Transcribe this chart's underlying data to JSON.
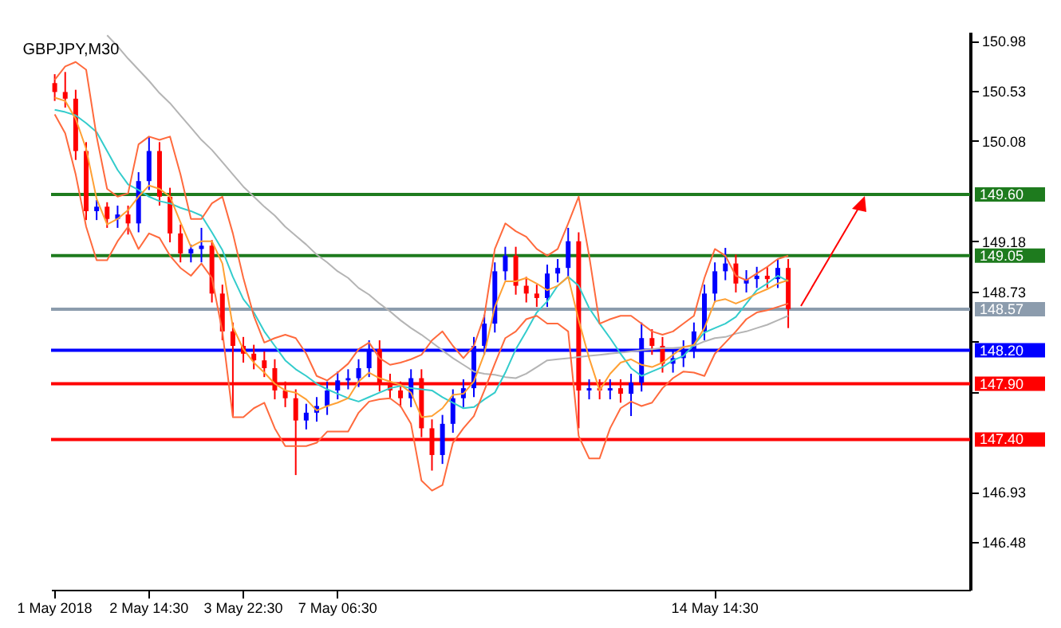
{
  "chart_data": {
    "type": "candlestick",
    "title": "GBPJPY,M30",
    "categories": [
      "1 May 2018",
      null,
      null,
      null,
      null,
      null,
      null,
      null,
      null,
      "2 May 14:30",
      null,
      null,
      null,
      null,
      null,
      null,
      null,
      null,
      "3 May 22:30",
      null,
      null,
      null,
      null,
      null,
      null,
      null,
      null,
      "7 May 06:30",
      null,
      null,
      null,
      null,
      null,
      null,
      null,
      null,
      null,
      null,
      null,
      null,
      null,
      null,
      null,
      null,
      null,
      null,
      null,
      null,
      null,
      null,
      null,
      null,
      null,
      null,
      null,
      null,
      null,
      null,
      null,
      null,
      null,
      null,
      null,
      "14 May 14:30",
      null,
      null,
      null,
      null,
      null,
      null,
      null,
      null,
      null,
      null,
      null,
      null,
      null,
      null,
      null,
      null,
      null,
      null,
      null,
      null,
      null,
      null,
      null,
      null
    ],
    "ohlc": [
      [
        150.6,
        150.68,
        150.44,
        150.52
      ],
      [
        150.52,
        150.7,
        150.38,
        150.46
      ],
      [
        150.46,
        150.54,
        149.91,
        149.99
      ],
      [
        149.99,
        150.07,
        149.37,
        149.45
      ],
      [
        149.45,
        149.55,
        149.37,
        149.49
      ],
      [
        149.49,
        149.53,
        149.3,
        149.38
      ],
      [
        149.38,
        149.5,
        149.3,
        149.42
      ],
      [
        149.42,
        149.5,
        149.24,
        149.34
      ],
      [
        149.34,
        149.8,
        149.26,
        149.72
      ],
      [
        149.72,
        150.12,
        149.64,
        149.99
      ],
      [
        149.99,
        150.07,
        149.5,
        149.58
      ],
      [
        149.58,
        149.66,
        149.17,
        149.25
      ],
      [
        149.25,
        149.33,
        148.99,
        149.07
      ],
      [
        149.07,
        149.15,
        148.99,
        149.11
      ],
      [
        149.11,
        149.3,
        148.99,
        149.14
      ],
      [
        149.14,
        149.19,
        148.63,
        148.71
      ],
      [
        148.71,
        148.79,
        148.29,
        148.37
      ],
      [
        148.37,
        148.45,
        147.61,
        148.24
      ],
      [
        148.24,
        148.32,
        148.09,
        148.17
      ],
      [
        148.17,
        148.25,
        148.03,
        148.11
      ],
      [
        148.11,
        148.19,
        147.96,
        148.04
      ],
      [
        148.04,
        148.12,
        147.76,
        147.84
      ],
      [
        147.84,
        147.92,
        147.69,
        147.77
      ],
      [
        147.77,
        147.85,
        147.08,
        147.57
      ],
      [
        147.57,
        147.72,
        147.49,
        147.64
      ],
      [
        147.64,
        147.78,
        147.56,
        147.7
      ],
      [
        147.7,
        147.92,
        147.62,
        147.84
      ],
      [
        147.84,
        148.01,
        147.76,
        147.93
      ],
      [
        147.93,
        148.03,
        147.85,
        147.95
      ],
      [
        147.95,
        148.12,
        147.87,
        148.04
      ],
      [
        148.04,
        148.29,
        147.96,
        148.21
      ],
      [
        148.21,
        148.29,
        147.83,
        147.91
      ],
      [
        147.91,
        147.99,
        147.76,
        147.84
      ],
      [
        147.84,
        147.92,
        147.69,
        147.77
      ],
      [
        147.77,
        148.03,
        147.69,
        147.95
      ],
      [
        147.95,
        148.03,
        147.42,
        147.5
      ],
      [
        147.5,
        147.58,
        147.12,
        147.26
      ],
      [
        147.26,
        147.62,
        147.18,
        147.54
      ],
      [
        147.54,
        147.85,
        147.46,
        147.77
      ],
      [
        147.77,
        147.94,
        147.69,
        147.86
      ],
      [
        147.86,
        148.32,
        147.78,
        148.24
      ],
      [
        148.24,
        148.52,
        148.16,
        148.44
      ],
      [
        148.44,
        148.99,
        148.36,
        148.91
      ],
      [
        148.91,
        149.13,
        148.83,
        149.05
      ],
      [
        149.05,
        149.13,
        148.7,
        148.78
      ],
      [
        148.78,
        148.86,
        148.63,
        148.71
      ],
      [
        148.71,
        148.79,
        148.59,
        148.67
      ],
      [
        148.67,
        148.97,
        148.59,
        148.89
      ],
      [
        148.89,
        149.02,
        148.81,
        148.94
      ],
      [
        148.94,
        149.3,
        148.86,
        149.18
      ],
      [
        149.18,
        149.26,
        147.5,
        147.84
      ],
      [
        147.84,
        147.94,
        147.76,
        147.86
      ],
      [
        147.86,
        147.94,
        147.76,
        147.84
      ],
      [
        147.84,
        147.94,
        147.76,
        147.86
      ],
      [
        147.86,
        147.94,
        147.73,
        147.81
      ],
      [
        147.81,
        147.99,
        147.61,
        147.91
      ],
      [
        147.91,
        148.45,
        147.83,
        148.31
      ],
      [
        148.31,
        148.39,
        148.16,
        148.24
      ],
      [
        148.24,
        148.32,
        148.0,
        148.08
      ],
      [
        148.08,
        148.21,
        148.0,
        148.13
      ],
      [
        148.13,
        148.29,
        148.05,
        148.21
      ],
      [
        148.21,
        148.45,
        148.13,
        148.37
      ],
      [
        148.37,
        148.79,
        148.29,
        148.71
      ],
      [
        148.71,
        148.99,
        148.63,
        148.91
      ],
      [
        148.91,
        149.12,
        148.83,
        148.98
      ],
      [
        148.98,
        149.06,
        148.72,
        148.8
      ],
      [
        148.8,
        148.92,
        148.72,
        148.84
      ],
      [
        148.84,
        148.95,
        148.76,
        148.87
      ],
      [
        148.87,
        148.95,
        148.76,
        148.84
      ],
      [
        148.84,
        149.02,
        148.76,
        148.94
      ],
      [
        148.94,
        149.02,
        148.4,
        148.57
      ],
      null,
      null,
      null,
      null,
      null,
      null,
      null,
      null,
      null,
      null,
      null,
      null,
      null,
      null,
      null,
      null,
      null
    ],
    "colors": [
      "#ff0000",
      "#ff0000",
      "#ff0000",
      "#ff0000",
      "#0000ff",
      "#ff0000",
      "#0000ff",
      "#ff0000",
      "#0000ff",
      "#0000ff",
      "#ff0000",
      "#ff0000",
      "#ff0000",
      "#0000ff",
      "#0000ff",
      "#ff0000",
      "#ff0000",
      "#ff0000",
      "#ff0000",
      "#ff0000",
      "#ff0000",
      "#ff0000",
      "#ff0000",
      "#ff0000",
      "#0000ff",
      "#0000ff",
      "#0000ff",
      "#0000ff",
      "#0000ff",
      "#0000ff",
      "#0000ff",
      "#ff0000",
      "#ff0000",
      "#ff0000",
      "#0000ff",
      "#ff0000",
      "#ff0000",
      "#0000ff",
      "#0000ff",
      "#0000ff",
      "#0000ff",
      "#0000ff",
      "#0000ff",
      "#0000ff",
      "#ff0000",
      "#ff0000",
      "#ff0000",
      "#0000ff",
      "#0000ff",
      "#0000ff",
      "#ff0000",
      "#0000ff",
      "#ff0000",
      "#0000ff",
      "#ff0000",
      "#0000ff",
      "#0000ff",
      "#ff0000",
      "#ff0000",
      "#0000ff",
      "#0000ff",
      "#0000ff",
      "#0000ff",
      "#0000ff",
      "#0000ff",
      "#ff0000",
      "#0000ff",
      "#0000ff",
      "#ff0000",
      "#0000ff",
      "#ff0000",
      null,
      null,
      null,
      null,
      null,
      null,
      null,
      null,
      null,
      null,
      null,
      null,
      null,
      null,
      null,
      null,
      null
    ],
    "series": [
      {
        "type": "line",
        "color": "#b4b4b4",
        "values": [
          null,
          null,
          null,
          null,
          null,
          151.03,
          150.93,
          150.82,
          150.72,
          150.62,
          150.51,
          150.42,
          150.31,
          150.2,
          150.09,
          150.0,
          149.89,
          149.78,
          149.67,
          149.58,
          149.49,
          149.41,
          149.31,
          149.23,
          149.15,
          149.06,
          148.99,
          148.91,
          148.85,
          148.76,
          148.7,
          148.62,
          148.55,
          148.47,
          148.4,
          148.34,
          148.27,
          148.2,
          148.13,
          148.07,
          148.01,
          147.99,
          147.98,
          147.96,
          147.95,
          147.99,
          148.05,
          148.11,
          148.12,
          148.13,
          148.14,
          148.15,
          148.16,
          148.17,
          148.18,
          148.19,
          148.2,
          148.21,
          148.22,
          148.22,
          148.23,
          148.24,
          148.28,
          148.31,
          148.32,
          148.35,
          148.37,
          148.4,
          148.43,
          148.47,
          148.51,
          null,
          null,
          null,
          null,
          null,
          null,
          null,
          null,
          null,
          null,
          null,
          null,
          null,
          null,
          null,
          null,
          null
        ]
      },
      {
        "type": "line",
        "color": "#33cccc",
        "values": [
          150.36,
          150.34,
          150.31,
          150.24,
          150.16,
          149.99,
          149.82,
          149.69,
          149.64,
          149.58,
          149.54,
          149.52,
          149.48,
          149.45,
          149.41,
          149.26,
          149.1,
          148.86,
          148.66,
          148.54,
          148.37,
          148.24,
          148.11,
          148.03,
          147.97,
          147.9,
          147.85,
          147.81,
          147.77,
          147.74,
          147.78,
          147.82,
          147.86,
          147.88,
          147.86,
          147.85,
          147.84,
          147.78,
          147.73,
          147.68,
          147.69,
          147.76,
          147.82,
          148.0,
          148.21,
          148.37,
          148.54,
          148.64,
          148.78,
          148.86,
          148.78,
          148.58,
          148.44,
          148.31,
          148.17,
          148.04,
          147.97,
          148.01,
          148.05,
          148.11,
          148.15,
          148.25,
          148.36,
          148.4,
          148.44,
          148.5,
          148.62,
          148.74,
          148.8,
          148.87,
          148.82,
          null,
          null,
          null,
          null,
          null,
          null,
          null,
          null,
          null,
          null,
          null,
          null,
          null,
          null,
          null,
          null,
          null
        ]
      },
      {
        "type": "line",
        "color": "#ff6a3d",
        "values": [
          150.63,
          150.75,
          150.79,
          150.72,
          150.12,
          149.65,
          149.58,
          149.61,
          150.05,
          150.12,
          150.09,
          150.12,
          149.78,
          149.38,
          149.38,
          149.52,
          149.58,
          149.25,
          148.85,
          148.51,
          148.27,
          148.31,
          148.34,
          148.31,
          148.17,
          147.97,
          147.93,
          148.0,
          148.08,
          148.21,
          148.27,
          148.13,
          148.07,
          148.09,
          148.12,
          148.16,
          148.29,
          148.37,
          148.24,
          148.13,
          148.24,
          148.51,
          149.11,
          149.34,
          149.27,
          149.22,
          149.11,
          149.05,
          149.11,
          149.34,
          149.58,
          149.05,
          148.44,
          148.48,
          148.51,
          148.51,
          148.44,
          148.37,
          148.34,
          148.37,
          148.44,
          148.51,
          148.85,
          149.11,
          149.05,
          148.87,
          148.83,
          148.89,
          148.95,
          149.02,
          149.05,
          null,
          null,
          null,
          null,
          null,
          null,
          null,
          null,
          null,
          null,
          null,
          null,
          null,
          null,
          null,
          null,
          null
        ]
      },
      {
        "type": "line",
        "color": "#ff6a3d",
        "values": [
          150.32,
          150.15,
          149.78,
          149.31,
          149.01,
          149.01,
          149.18,
          149.31,
          149.11,
          149.25,
          149.21,
          149.05,
          148.94,
          148.87,
          148.98,
          148.85,
          148.37,
          147.6,
          147.6,
          147.68,
          147.73,
          147.5,
          147.34,
          147.34,
          147.34,
          147.37,
          147.47,
          147.47,
          147.47,
          147.64,
          147.74,
          147.76,
          147.77,
          147.7,
          147.54,
          147.03,
          146.94,
          146.99,
          147.37,
          147.5,
          147.61,
          147.84,
          148.08,
          148.31,
          148.37,
          148.48,
          148.51,
          148.44,
          148.44,
          148.37,
          147.43,
          147.23,
          147.23,
          147.5,
          147.68,
          147.74,
          147.7,
          147.73,
          147.86,
          147.95,
          148.01,
          148.0,
          147.97,
          148.17,
          148.27,
          148.37,
          148.48,
          148.54,
          148.56,
          148.59,
          148.62,
          null,
          null,
          null,
          null,
          null,
          null,
          null,
          null,
          null,
          null,
          null,
          null,
          null,
          null,
          null,
          null,
          null
        ]
      },
      {
        "type": "line",
        "color": "#ffa033",
        "values": [
          150.47,
          150.44,
          150.28,
          150.01,
          149.56,
          149.33,
          149.38,
          149.46,
          149.58,
          149.68,
          149.65,
          149.58,
          149.35,
          149.13,
          149.18,
          149.18,
          148.98,
          148.41,
          148.21,
          148.09,
          148.0,
          147.9,
          147.84,
          147.82,
          147.76,
          147.66,
          147.7,
          147.73,
          147.77,
          147.92,
          148.0,
          147.95,
          147.92,
          147.89,
          147.82,
          147.6,
          147.61,
          147.68,
          147.8,
          147.81,
          147.92,
          148.17,
          148.59,
          148.82,
          148.82,
          148.85,
          148.8,
          148.74,
          148.78,
          148.86,
          148.47,
          148.13,
          147.84,
          147.99,
          148.09,
          148.12,
          148.07,
          148.05,
          148.09,
          148.16,
          148.23,
          148.25,
          148.4,
          148.64,
          148.66,
          148.62,
          148.66,
          148.71,
          148.75,
          148.8,
          148.83,
          null,
          null,
          null,
          null,
          null,
          null,
          null,
          null,
          null,
          null,
          null,
          null,
          null,
          null,
          null,
          null,
          null
        ]
      }
    ],
    "ylim": [
      146.05,
      151.06
    ],
    "yticks": [
      150.98,
      150.53,
      150.08,
      149.18,
      148.73,
      {
        "value": 148.28,
        "label": null
      },
      {
        "value": 147.83,
        "label": null
      },
      146.93,
      146.48
    ],
    "ref_lines": [
      {
        "axis": "y",
        "value": 149.6,
        "label": "149.60",
        "color": "#1e7b1e"
      },
      {
        "axis": "y",
        "value": 149.05,
        "label": "149.05",
        "color": "#1e7b1e"
      },
      {
        "axis": "y",
        "value": 148.57,
        "label": "148.57",
        "color": "#8c9cad"
      },
      {
        "axis": "y",
        "value": 148.2,
        "label": "148.20",
        "color": "#0000ff"
      },
      {
        "axis": "y",
        "value": 147.9,
        "label": "147.90",
        "color": "#ff0000"
      },
      {
        "axis": "y",
        "value": 147.4,
        "label": "147.40",
        "color": "#ff0000"
      }
    ]
  }
}
